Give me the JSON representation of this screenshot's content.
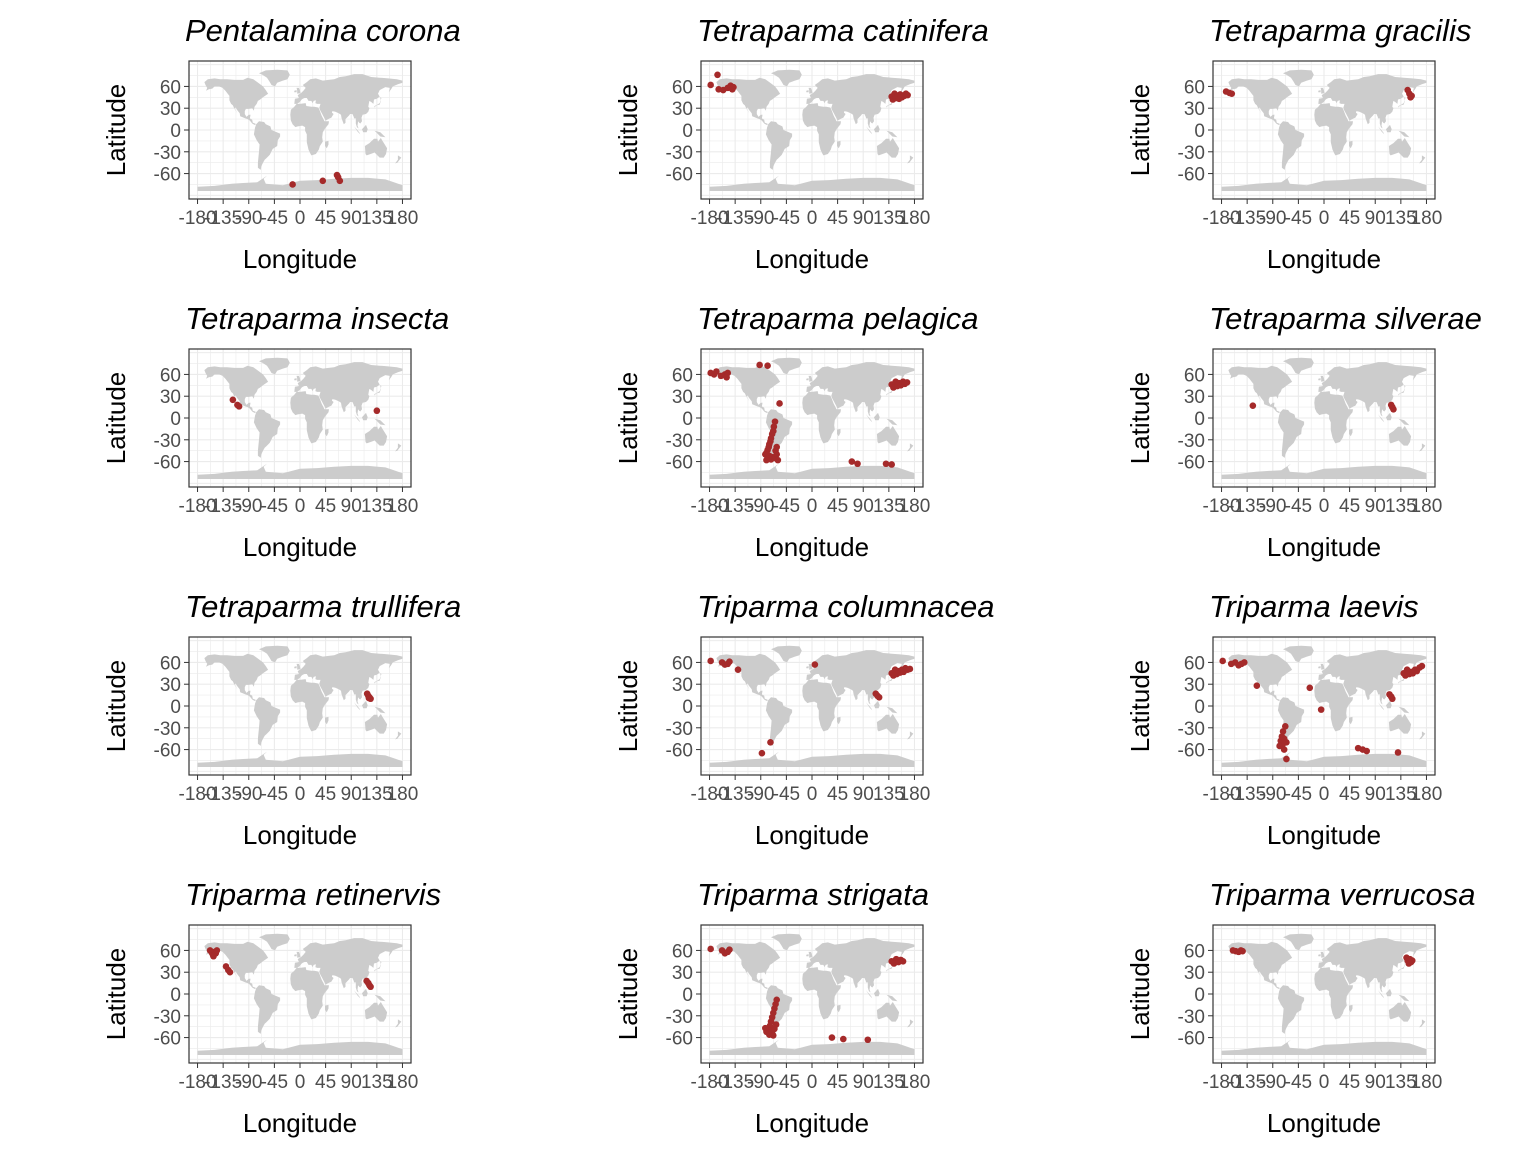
{
  "colors": {
    "land": "#cccccc",
    "points": "#a52a2a",
    "grid": "#ebebeb",
    "border": "#333333",
    "tick_text": "#4d4d4d"
  },
  "chart_data": [
    {
      "type": "scatter",
      "title": "Pentalamina corona",
      "xlabel": "Longitude",
      "ylabel": "Latitude",
      "xlim": [
        -195,
        195
      ],
      "ylim": [
        -95,
        95
      ],
      "grid": true,
      "xticks": [
        "-180",
        "-135",
        "-90",
        "-45",
        "0",
        "45",
        "90",
        "135",
        "180"
      ],
      "yticks": [
        "60",
        "30",
        "0",
        "-30",
        "-60"
      ],
      "points": [
        [
          -13,
          -75
        ],
        [
          40,
          -70
        ],
        [
          65,
          -62
        ],
        [
          67,
          -65
        ],
        [
          70,
          -70
        ]
      ]
    },
    {
      "type": "scatter",
      "title": "Tetraparma catinifera",
      "xlabel": "Longitude",
      "ylabel": "Latitude",
      "xlim": [
        -195,
        195
      ],
      "ylim": [
        -95,
        95
      ],
      "grid": true,
      "xticks": [
        "-180",
        "-135",
        "-90",
        "-45",
        "0",
        "45",
        "90",
        "135",
        "180"
      ],
      "yticks": [
        "60",
        "30",
        "0",
        "-30",
        "-60"
      ],
      "points": [
        [
          -178,
          62
        ],
        [
          -166,
          76
        ],
        [
          -164,
          56
        ],
        [
          -156,
          55
        ],
        [
          -148,
          58
        ],
        [
          -143,
          61
        ],
        [
          -140,
          56
        ],
        [
          -138,
          59
        ],
        [
          140,
          46
        ],
        [
          142,
          42
        ],
        [
          145,
          50
        ],
        [
          147,
          44
        ],
        [
          150,
          47
        ],
        [
          153,
          43
        ],
        [
          155,
          49
        ],
        [
          158,
          45
        ],
        [
          162,
          47
        ],
        [
          165,
          50
        ],
        [
          168,
          48
        ]
      ]
    },
    {
      "type": "scatter",
      "title": "Tetraparma gracilis",
      "xlabel": "Longitude",
      "ylabel": "Latitude",
      "xlim": [
        -195,
        195
      ],
      "ylim": [
        -95,
        95
      ],
      "grid": true,
      "xticks": [
        "-180",
        "-135",
        "-90",
        "-45",
        "0",
        "45",
        "90",
        "135",
        "180"
      ],
      "yticks": [
        "60",
        "30",
        "0",
        "-30",
        "-60"
      ],
      "points": [
        [
          -172,
          53
        ],
        [
          -166,
          51
        ],
        [
          -162,
          50
        ],
        [
          147,
          55
        ],
        [
          150,
          50
        ],
        [
          152,
          45
        ],
        [
          154,
          47
        ]
      ]
    },
    {
      "type": "scatter",
      "title": "Tetraparma insecta",
      "xlabel": "Longitude",
      "ylabel": "Latitude",
      "xlim": [
        -195,
        195
      ],
      "ylim": [
        -95,
        95
      ],
      "grid": true,
      "xticks": [
        "-180",
        "-135",
        "-90",
        "-45",
        "0",
        "45",
        "90",
        "135",
        "180"
      ],
      "yticks": [
        "60",
        "30",
        "0",
        "-30",
        "-60"
      ],
      "points": [
        [
          -118,
          25
        ],
        [
          -110,
          18
        ],
        [
          -107,
          16
        ],
        [
          135,
          10
        ]
      ]
    },
    {
      "type": "scatter",
      "title": "Tetraparma pelagica",
      "xlabel": "Longitude",
      "ylabel": "Latitude",
      "xlim": [
        -195,
        195
      ],
      "ylim": [
        -95,
        95
      ],
      "grid": true,
      "xticks": [
        "-180",
        "-135",
        "-90",
        "-45",
        "0",
        "45",
        "90",
        "135",
        "180"
      ],
      "yticks": [
        "60",
        "30",
        "0",
        "-30",
        "-60"
      ],
      "points": [
        [
          -178,
          62
        ],
        [
          -172,
          60
        ],
        [
          -168,
          64
        ],
        [
          -160,
          58
        ],
        [
          -153,
          60
        ],
        [
          -150,
          56
        ],
        [
          -148,
          62
        ],
        [
          -92,
          73
        ],
        [
          -78,
          72
        ],
        [
          -57,
          20
        ],
        [
          -65,
          -5
        ],
        [
          -67,
          -12
        ],
        [
          -68,
          -18
        ],
        [
          -70,
          -22
        ],
        [
          -72,
          -28
        ],
        [
          -73,
          -32
        ],
        [
          -75,
          -36
        ],
        [
          -76,
          -40
        ],
        [
          -78,
          -44
        ],
        [
          -80,
          -48
        ],
        [
          -82,
          -50
        ],
        [
          -75,
          -52
        ],
        [
          -70,
          -54
        ],
        [
          -78,
          -56
        ],
        [
          -72,
          -57
        ],
        [
          -66,
          -55
        ],
        [
          -62,
          -50
        ],
        [
          -64,
          -45
        ],
        [
          -62,
          -40
        ],
        [
          -60,
          -58
        ],
        [
          -80,
          -58
        ],
        [
          70,
          -60
        ],
        [
          80,
          -63
        ],
        [
          130,
          -63
        ],
        [
          140,
          -64
        ],
        [
          140,
          46
        ],
        [
          143,
          42
        ],
        [
          147,
          50
        ],
        [
          150,
          44
        ],
        [
          153,
          48
        ],
        [
          156,
          45
        ],
        [
          160,
          50
        ],
        [
          163,
          47
        ],
        [
          167,
          49
        ]
      ]
    },
    {
      "type": "scatter",
      "title": "Tetraparma silverae",
      "xlabel": "Longitude",
      "ylabel": "Latitude",
      "xlim": [
        -195,
        195
      ],
      "ylim": [
        -95,
        95
      ],
      "grid": true,
      "xticks": [
        "-180",
        "-135",
        "-90",
        "-45",
        "0",
        "45",
        "90",
        "135",
        "180"
      ],
      "yticks": [
        "60",
        "30",
        "0",
        "-30",
        "-60"
      ],
      "points": [
        [
          -125,
          17
        ],
        [
          118,
          18
        ],
        [
          120,
          15
        ],
        [
          122,
          12
        ]
      ]
    },
    {
      "type": "scatter",
      "title": "Tetraparma trullifera",
      "xlabel": "Longitude",
      "ylabel": "Latitude",
      "xlim": [
        -195,
        195
      ],
      "ylim": [
        -95,
        95
      ],
      "grid": true,
      "xticks": [
        "-180",
        "-135",
        "-90",
        "-45",
        "0",
        "45",
        "90",
        "135",
        "180"
      ],
      "yticks": [
        "60",
        "30",
        "0",
        "-30",
        "-60"
      ],
      "points": [
        [
          118,
          17
        ],
        [
          120,
          14
        ],
        [
          122,
          12
        ],
        [
          124,
          10
        ],
        [
          121,
          11
        ]
      ]
    },
    {
      "type": "scatter",
      "title": "Triparma columnacea",
      "xlabel": "Longitude",
      "ylabel": "Latitude",
      "xlim": [
        -195,
        195
      ],
      "ylim": [
        -95,
        95
      ],
      "grid": true,
      "xticks": [
        "-180",
        "-135",
        "-90",
        "-45",
        "0",
        "45",
        "90",
        "135",
        "180"
      ],
      "yticks": [
        "60",
        "30",
        "0",
        "-30",
        "-60"
      ],
      "points": [
        [
          -178,
          62
        ],
        [
          -158,
          60
        ],
        [
          -153,
          57
        ],
        [
          -148,
          58
        ],
        [
          -145,
          61
        ],
        [
          -130,
          50
        ],
        [
          -88,
          -65
        ],
        [
          -73,
          -50
        ],
        [
          5,
          57
        ],
        [
          112,
          17
        ],
        [
          115,
          14
        ],
        [
          118,
          12
        ],
        [
          140,
          45
        ],
        [
          143,
          42
        ],
        [
          146,
          50
        ],
        [
          149,
          44
        ],
        [
          152,
          48
        ],
        [
          155,
          46
        ],
        [
          158,
          50
        ],
        [
          161,
          47
        ],
        [
          164,
          52
        ],
        [
          168,
          50
        ],
        [
          172,
          51
        ]
      ]
    },
    {
      "type": "scatter",
      "title": "Triparma laevis",
      "xlabel": "Longitude",
      "ylabel": "Latitude",
      "xlim": [
        -195,
        195
      ],
      "ylim": [
        -95,
        95
      ],
      "grid": true,
      "xticks": [
        "-180",
        "-135",
        "-90",
        "-45",
        "0",
        "45",
        "90",
        "135",
        "180"
      ],
      "yticks": [
        "60",
        "30",
        "0",
        "-30",
        "-60"
      ],
      "points": [
        [
          -178,
          62
        ],
        [
          -163,
          58
        ],
        [
          -156,
          60
        ],
        [
          -150,
          56
        ],
        [
          -145,
          58
        ],
        [
          -140,
          60
        ],
        [
          -118,
          28
        ],
        [
          -68,
          -28
        ],
        [
          -72,
          -35
        ],
        [
          -74,
          -42
        ],
        [
          -76,
          -48
        ],
        [
          -70,
          -45
        ],
        [
          -66,
          -50
        ],
        [
          -72,
          -52
        ],
        [
          -78,
          -55
        ],
        [
          -70,
          -60
        ],
        [
          -66,
          -73
        ],
        [
          -25,
          25
        ],
        [
          -5,
          -5
        ],
        [
          60,
          -58
        ],
        [
          68,
          -60
        ],
        [
          75,
          -62
        ],
        [
          115,
          16
        ],
        [
          118,
          13
        ],
        [
          120,
          10
        ],
        [
          130,
          -64
        ],
        [
          140,
          45
        ],
        [
          143,
          42
        ],
        [
          146,
          50
        ],
        [
          150,
          44
        ],
        [
          153,
          47
        ],
        [
          156,
          45
        ],
        [
          160,
          50
        ],
        [
          163,
          48
        ],
        [
          168,
          53
        ],
        [
          172,
          55
        ]
      ]
    },
    {
      "type": "scatter",
      "title": "Triparma retinervis",
      "xlabel": "Longitude",
      "ylabel": "Latitude",
      "xlim": [
        -195,
        195
      ],
      "ylim": [
        -95,
        95
      ],
      "grid": true,
      "xticks": [
        "-180",
        "-135",
        "-90",
        "-45",
        "0",
        "45",
        "90",
        "135",
        "180"
      ],
      "yticks": [
        "60",
        "30",
        "0",
        "-30",
        "-60"
      ],
      "points": [
        [
          -158,
          60
        ],
        [
          -155,
          57
        ],
        [
          -153,
          54
        ],
        [
          -150,
          58
        ],
        [
          -148,
          56
        ],
        [
          -146,
          60
        ],
        [
          -152,
          52
        ],
        [
          -130,
          38
        ],
        [
          -126,
          33
        ],
        [
          -123,
          30
        ],
        [
          117,
          18
        ],
        [
          120,
          15
        ],
        [
          122,
          12
        ],
        [
          124,
          10
        ]
      ]
    },
    {
      "type": "scatter",
      "title": "Triparma strigata",
      "xlabel": "Longitude",
      "ylabel": "Latitude",
      "xlim": [
        -195,
        195
      ],
      "ylim": [
        -95,
        95
      ],
      "grid": true,
      "xticks": [
        "-180",
        "-135",
        "-90",
        "-45",
        "0",
        "45",
        "90",
        "135",
        "180"
      ],
      "yticks": [
        "60",
        "30",
        "0",
        "-30",
        "-60"
      ],
      "points": [
        [
          -178,
          62
        ],
        [
          -158,
          60
        ],
        [
          -153,
          56
        ],
        [
          -148,
          58
        ],
        [
          -145,
          61
        ],
        [
          -62,
          -8
        ],
        [
          -64,
          -14
        ],
        [
          -66,
          -20
        ],
        [
          -68,
          -26
        ],
        [
          -70,
          -32
        ],
        [
          -72,
          -38
        ],
        [
          -74,
          -44
        ],
        [
          -76,
          -50
        ],
        [
          -70,
          -52
        ],
        [
          -66,
          -48
        ],
        [
          -80,
          -52
        ],
        [
          -75,
          -56
        ],
        [
          -68,
          -57
        ],
        [
          -63,
          -42
        ],
        [
          -82,
          -47
        ],
        [
          35,
          -60
        ],
        [
          55,
          -62
        ],
        [
          98,
          -63
        ],
        [
          140,
          45
        ],
        [
          144,
          42
        ],
        [
          148,
          48
        ],
        [
          152,
          44
        ],
        [
          156,
          47
        ],
        [
          160,
          45
        ]
      ]
    },
    {
      "type": "scatter",
      "title": "Triparma verrucosa",
      "xlabel": "Longitude",
      "ylabel": "Latitude",
      "xlim": [
        -195,
        195
      ],
      "ylim": [
        -95,
        95
      ],
      "grid": true,
      "xticks": [
        "-180",
        "-135",
        "-90",
        "-45",
        "0",
        "45",
        "90",
        "135",
        "180"
      ],
      "yticks": [
        "60",
        "30",
        "0",
        "-30",
        "-60"
      ],
      "points": [
        [
          -160,
          60
        ],
        [
          -155,
          59
        ],
        [
          -150,
          58
        ],
        [
          -146,
          60
        ],
        [
          -143,
          59
        ],
        [
          145,
          50
        ],
        [
          147,
          46
        ],
        [
          149,
          42
        ],
        [
          151,
          48
        ],
        [
          153,
          44
        ],
        [
          155,
          46
        ]
      ]
    }
  ]
}
